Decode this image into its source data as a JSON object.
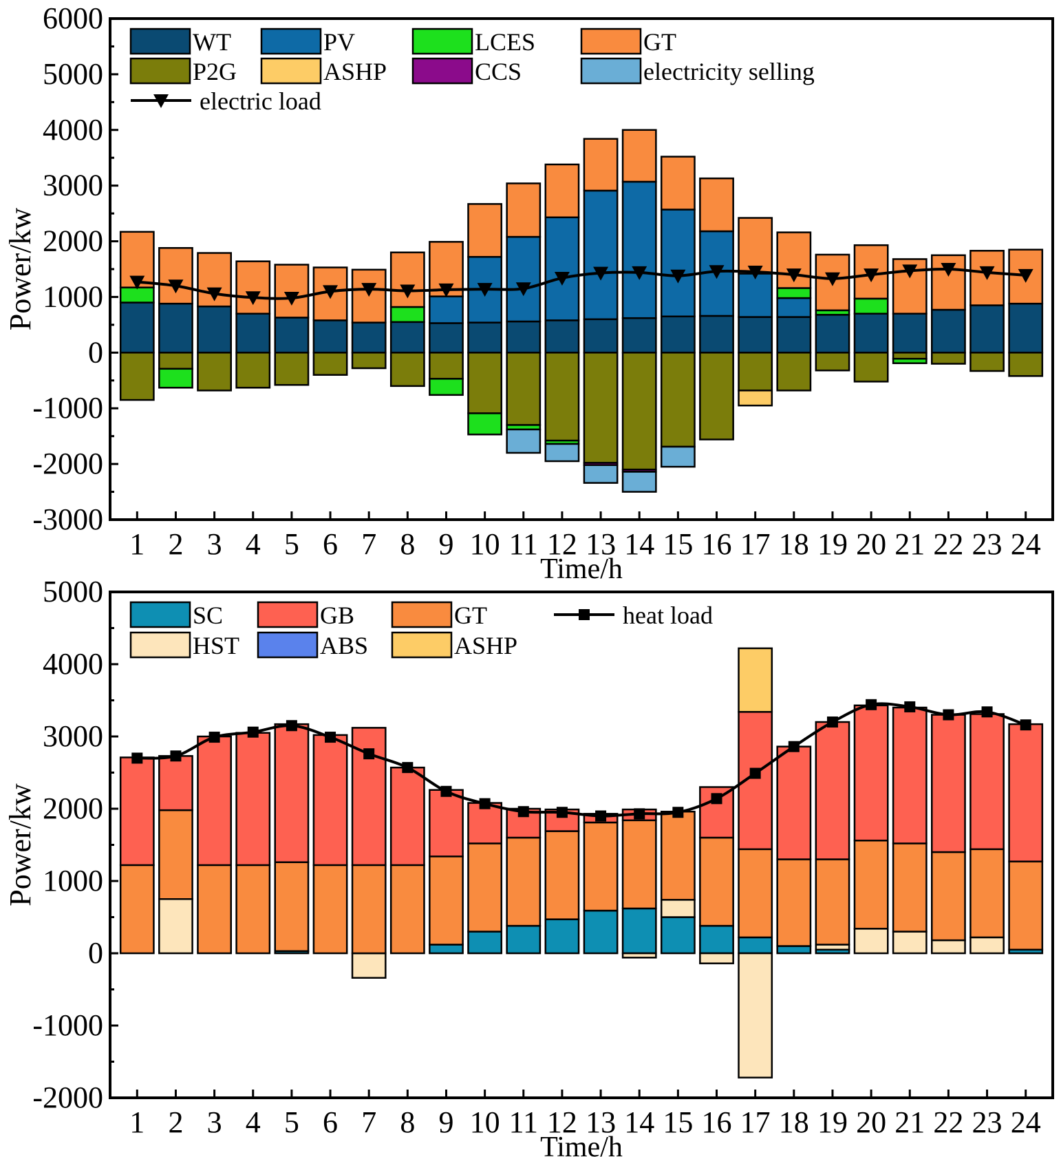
{
  "chart_data": [
    {
      "type": "bar",
      "stacked": true,
      "xlabel": "Time/h",
      "ylabel": "Power/kw",
      "ylim": [
        -3000,
        6000
      ],
      "yticks": [
        "6000",
        "5000",
        "4000",
        "3000",
        "2000",
        "1000",
        "0",
        "-1000",
        "-2000",
        "-3000"
      ],
      "ytick_values": [
        6000,
        5000,
        4000,
        3000,
        2000,
        1000,
        0,
        -1000,
        -2000,
        -3000
      ],
      "categories": [
        "1",
        "2",
        "3",
        "4",
        "5",
        "6",
        "7",
        "8",
        "9",
        "10",
        "11",
        "12",
        "13",
        "14",
        "15",
        "16",
        "17",
        "18",
        "19",
        "20",
        "21",
        "22",
        "23",
        "24"
      ],
      "legend_position": "top-left",
      "series": [
        {
          "name": "WT",
          "color": "#0a4a72",
          "values": [
            900,
            880,
            830,
            700,
            630,
            580,
            540,
            550,
            530,
            540,
            560,
            580,
            600,
            620,
            650,
            660,
            640,
            640,
            680,
            700,
            700,
            770,
            850,
            880
          ]
        },
        {
          "name": "PV",
          "color": "#0e6aa6",
          "values": [
            0,
            0,
            0,
            0,
            0,
            0,
            0,
            0,
            480,
            1180,
            1520,
            1850,
            2310,
            2450,
            1920,
            1520,
            780,
            340,
            0,
            0,
            0,
            0,
            0,
            0
          ]
        },
        {
          "name": "LCES",
          "color": "#1de01d",
          "values": [
            270,
            0,
            0,
            0,
            0,
            0,
            0,
            270,
            0,
            0,
            0,
            0,
            0,
            0,
            0,
            0,
            0,
            180,
            80,
            270,
            0,
            0,
            0,
            0
          ]
        },
        {
          "name": "GT",
          "color": "#f98b3f",
          "values": [
            1000,
            1000,
            960,
            940,
            950,
            950,
            950,
            980,
            980,
            950,
            960,
            950,
            930,
            930,
            950,
            950,
            1000,
            1000,
            1000,
            960,
            980,
            980,
            980,
            970
          ]
        },
        {
          "name": "P2G",
          "color": "#7b7d0b",
          "values": [
            -850,
            -290,
            -680,
            -630,
            -580,
            -400,
            -280,
            -600,
            -470,
            -1090,
            -1300,
            -1580,
            -1980,
            -2100,
            -1690,
            -1560,
            -680,
            -680,
            -320,
            -520,
            -110,
            -200,
            -330,
            -420
          ]
        },
        {
          "name": "ASHP",
          "color": "#fdcc66",
          "values": [
            0,
            0,
            0,
            0,
            0,
            0,
            0,
            0,
            0,
            0,
            0,
            0,
            0,
            0,
            0,
            0,
            -270,
            0,
            0,
            0,
            0,
            0,
            0,
            0
          ]
        },
        {
          "name": "LCES",
          "color": "#1de01d",
          "values": [
            0,
            -340,
            0,
            0,
            0,
            0,
            0,
            0,
            -290,
            -380,
            -80,
            -60,
            0,
            0,
            0,
            0,
            0,
            0,
            0,
            0,
            -80,
            0,
            0,
            0
          ]
        },
        {
          "name": "CCS",
          "color": "#8b0b8b",
          "values": [
            0,
            0,
            0,
            0,
            0,
            0,
            0,
            0,
            0,
            0,
            0,
            0,
            -40,
            -40,
            0,
            0,
            0,
            0,
            0,
            0,
            0,
            0,
            0,
            0
          ]
        },
        {
          "name": "electricity selling",
          "color": "#6aaed6",
          "values": [
            0,
            0,
            0,
            0,
            0,
            0,
            0,
            0,
            0,
            0,
            -420,
            -310,
            -320,
            -360,
            -360,
            0,
            0,
            0,
            0,
            0,
            0,
            0,
            0,
            0
          ]
        }
      ],
      "line": {
        "name": "electric load",
        "marker": "triangle-down",
        "values": [
          1270,
          1200,
          1060,
          990,
          980,
          1100,
          1140,
          1110,
          1130,
          1140,
          1150,
          1340,
          1430,
          1440,
          1380,
          1460,
          1450,
          1400,
          1330,
          1400,
          1470,
          1500,
          1440,
          1390
        ]
      },
      "legend_labels": [
        "WT",
        "PV",
        "LCES",
        "GT",
        "P2G",
        "ASHP",
        "CCS",
        "electricity selling",
        "electric load"
      ]
    },
    {
      "type": "bar",
      "stacked": true,
      "xlabel": "Time/h",
      "ylabel": "Power/kw",
      "ylim": [
        -2000,
        5000
      ],
      "yticks": [
        "5000",
        "4000",
        "3000",
        "2000",
        "1000",
        "0",
        "-1000",
        "-2000"
      ],
      "ytick_values": [
        5000,
        4000,
        3000,
        2000,
        1000,
        0,
        -1000,
        -2000
      ],
      "categories": [
        "1",
        "2",
        "3",
        "4",
        "5",
        "6",
        "7",
        "8",
        "9",
        "10",
        "11",
        "12",
        "13",
        "14",
        "15",
        "16",
        "17",
        "18",
        "19",
        "20",
        "21",
        "22",
        "23",
        "24"
      ],
      "legend_position": "top-left",
      "series": [
        {
          "name": "SC",
          "color": "#0e8fb3",
          "values": [
            0,
            0,
            0,
            0,
            30,
            0,
            0,
            0,
            120,
            300,
            380,
            470,
            590,
            620,
            500,
            380,
            220,
            100,
            50,
            0,
            0,
            0,
            0,
            50
          ]
        },
        {
          "name": "HST",
          "color": "#fde5bb",
          "values": [
            0,
            750,
            0,
            0,
            0,
            0,
            -340,
            0,
            0,
            0,
            0,
            0,
            0,
            -60,
            240,
            -140,
            -1720,
            0,
            70,
            340,
            300,
            180,
            220,
            0
          ]
        },
        {
          "name": "GT",
          "color": "#f98b3f",
          "values": [
            1220,
            1230,
            1220,
            1220,
            1230,
            1220,
            1220,
            1220,
            1220,
            1220,
            1220,
            1220,
            1220,
            1220,
            1220,
            1220,
            1220,
            1200,
            1180,
            1220,
            1220,
            1220,
            1220,
            1220
          ]
        },
        {
          "name": "GB",
          "color": "#fe6151",
          "values": [
            1490,
            750,
            1780,
            1830,
            1910,
            1800,
            1900,
            1350,
            920,
            560,
            400,
            300,
            120,
            150,
            0,
            700,
            1900,
            1560,
            1900,
            1870,
            1880,
            1900,
            1870,
            1900
          ]
        },
        {
          "name": "ABS",
          "color": "#5a82ec",
          "values": [
            0,
            0,
            0,
            0,
            0,
            0,
            0,
            0,
            0,
            0,
            0,
            0,
            0,
            0,
            0,
            0,
            0,
            0,
            0,
            0,
            0,
            0,
            0,
            0
          ]
        },
        {
          "name": "ASHP",
          "color": "#fdcc66",
          "values": [
            0,
            0,
            0,
            0,
            0,
            0,
            0,
            0,
            0,
            0,
            0,
            0,
            0,
            0,
            0,
            0,
            880,
            0,
            0,
            0,
            0,
            0,
            0,
            0
          ]
        }
      ],
      "line": {
        "name": "heat load",
        "marker": "square",
        "values": [
          2700,
          2730,
          2990,
          3060,
          3150,
          2990,
          2760,
          2570,
          2240,
          2070,
          1960,
          1950,
          1900,
          1930,
          1950,
          2140,
          2490,
          2860,
          3200,
          3440,
          3410,
          3300,
          3340,
          3160
        ]
      },
      "legend_labels": [
        "SC",
        "GB",
        "GT",
        "heat load",
        "HST",
        "ABS",
        "ASHP"
      ]
    }
  ]
}
